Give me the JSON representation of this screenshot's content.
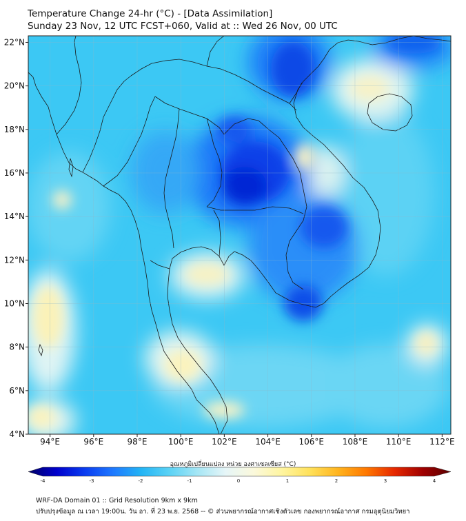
{
  "header": {
    "title": "Temperature Change 24-hr (°C) - [Data Assimilation]",
    "subtitle": "Sunday 23 Nov, 12 UTC FCST+060, Valid at :: Wed 26 Nov, 00 UTC"
  },
  "map": {
    "lat_range": [
      4,
      22.3
    ],
    "lon_range": [
      93,
      112.4
    ],
    "lat_ticks": [
      {
        "value": 4,
        "label": "4°N"
      },
      {
        "value": 6,
        "label": "6°N"
      },
      {
        "value": 8,
        "label": "8°N"
      },
      {
        "value": 10,
        "label": "10°N"
      },
      {
        "value": 12,
        "label": "12°N"
      },
      {
        "value": 14,
        "label": "14°N"
      },
      {
        "value": 16,
        "label": "16°N"
      },
      {
        "value": 18,
        "label": "18°N"
      },
      {
        "value": 20,
        "label": "20°N"
      },
      {
        "value": 22,
        "label": "22°N"
      }
    ],
    "lon_ticks": [
      {
        "value": 94,
        "label": "94°E"
      },
      {
        "value": 96,
        "label": "96°E"
      },
      {
        "value": 98,
        "label": "98°E"
      },
      {
        "value": 100,
        "label": "100°E"
      },
      {
        "value": 102,
        "label": "102°E"
      },
      {
        "value": 104,
        "label": "104°E"
      },
      {
        "value": 106,
        "label": "106°E"
      },
      {
        "value": 108,
        "label": "108°E"
      },
      {
        "value": 110,
        "label": "110°E"
      },
      {
        "value": 112,
        "label": "112°E"
      }
    ],
    "colors": {
      "land_line": "#1a1a1a",
      "grid_line": "#8fb7c9",
      "frame": "#222222"
    }
  },
  "colorbar": {
    "title": "อุณหภูมิเปลี่ยนแปลง หน่วย องศาเซลเซียส (°C)",
    "min": -4,
    "max": 4,
    "ticks": [
      {
        "value": -4,
        "label": "-4"
      },
      {
        "value": -3,
        "label": "-3"
      },
      {
        "value": -2,
        "label": "-2"
      },
      {
        "value": -1,
        "label": "-1"
      },
      {
        "value": 0,
        "label": "0"
      },
      {
        "value": 1,
        "label": "1"
      },
      {
        "value": 2,
        "label": "2"
      },
      {
        "value": 3,
        "label": "3"
      },
      {
        "value": 4,
        "label": "4"
      }
    ],
    "stops": [
      "#000066",
      "#0000cc",
      "#0a3cf0",
      "#1e78ff",
      "#23b4f5",
      "#5ad2f5",
      "#a5e6f5",
      "#e6f6f8",
      "#fbf9dc",
      "#fff5a0",
      "#ffe15a",
      "#ffb41e",
      "#ff7800",
      "#e62800",
      "#a00000",
      "#5a0000"
    ]
  },
  "footer": {
    "line1": "WRF-DA Domain 01 :: Grid Resolution 9km x 9km",
    "line2": "ปรับปรุงข้อมูล ณ เวลา 19:00น. วัน อา. ที่ 23 พ.ย. 2568 -- © ส่วนพยากรณ์อากาศเชิงตัวเลข กองพยากรณ์อากาศ กรมอุตุนิยมวิทยา"
  }
}
